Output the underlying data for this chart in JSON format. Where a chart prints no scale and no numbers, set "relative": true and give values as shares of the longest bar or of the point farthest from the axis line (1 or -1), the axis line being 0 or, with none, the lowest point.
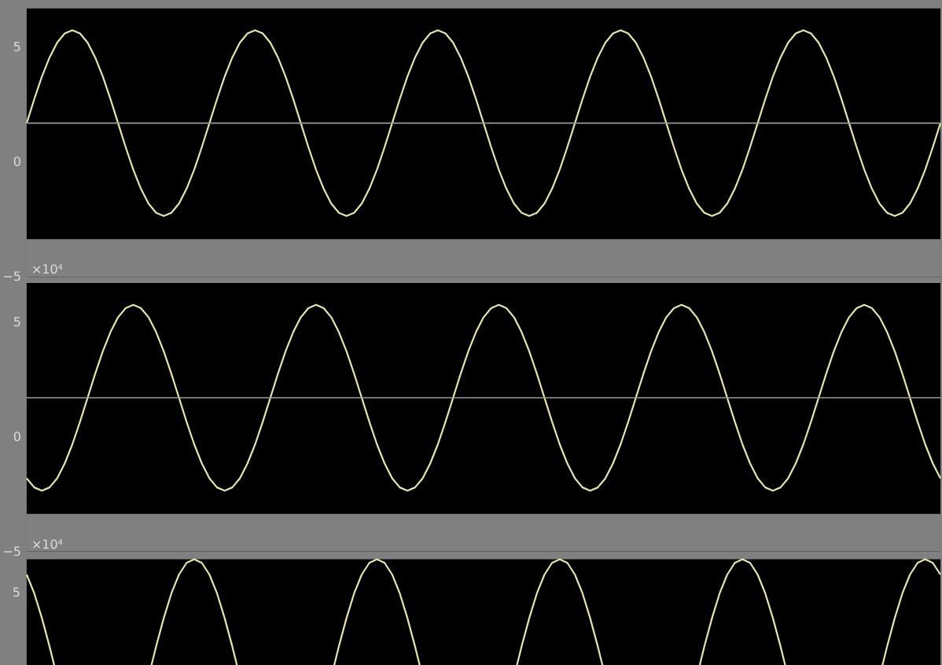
{
  "chart_data": [
    {
      "type": "line",
      "categories": [
        null,
        null,
        null,
        null,
        null,
        null,
        null,
        null,
        null,
        null,
        null,
        null,
        null,
        null,
        null,
        null,
        null,
        null,
        null,
        null,
        null,
        null,
        null,
        null,
        null,
        null,
        null,
        null,
        null,
        null,
        null,
        null,
        null,
        null,
        null,
        null,
        null,
        null,
        null,
        null,
        null,
        null,
        null,
        null,
        null,
        null,
        null,
        null,
        null,
        null,
        null,
        null,
        null,
        null,
        null,
        null,
        null,
        null,
        null,
        null,
        null,
        null,
        null,
        null,
        null,
        null,
        null,
        null,
        null,
        null,
        null,
        null,
        null,
        null,
        null,
        null,
        null,
        null,
        null,
        null,
        null,
        null,
        null,
        null,
        null,
        null,
        null,
        null,
        null,
        null,
        null,
        null,
        null,
        null,
        null,
        null,
        null,
        null,
        null,
        null,
        null,
        null,
        null,
        null,
        null,
        null,
        null,
        null,
        null,
        null,
        null,
        null,
        null,
        null,
        null,
        null,
        null,
        null,
        null,
        null,
        null
      ],
      "series": [
        {
          "color": "#e6e6a8",
          "values": [
            1.7,
            2.75,
            3.73,
            4.56,
            5.21,
            5.61,
            5.75,
            5.61,
            5.21,
            4.56,
            3.73,
            2.75,
            1.7,
            0.65,
            -0.33,
            -1.16,
            -1.81,
            -2.21,
            -2.35,
            -2.21,
            -1.81,
            -1.16,
            -0.33,
            0.65,
            1.7,
            2.75,
            3.73,
            4.56,
            5.21,
            5.61,
            5.75,
            5.61,
            5.21,
            4.56,
            3.73,
            2.75,
            1.7,
            0.65,
            -0.33,
            -1.16,
            -1.81,
            -2.21,
            -2.35,
            -2.21,
            -1.81,
            -1.16,
            -0.33,
            0.65,
            1.7,
            2.75,
            3.73,
            4.56,
            5.21,
            5.61,
            5.75,
            5.61,
            5.21,
            4.56,
            3.73,
            2.75,
            1.7,
            0.65,
            -0.33,
            -1.16,
            -1.81,
            -2.21,
            -2.35,
            -2.21,
            -1.81,
            -1.16,
            -0.33,
            0.65,
            1.7,
            2.75,
            3.73,
            4.56,
            5.21,
            5.61,
            5.75,
            5.61,
            5.21,
            4.56,
            3.73,
            2.75,
            1.7,
            0.65,
            -0.33,
            -1.16,
            -1.81,
            -2.21,
            -2.35,
            -2.21,
            -1.81,
            -1.16,
            -0.33,
            0.65,
            1.7,
            2.75,
            3.73,
            4.56,
            5.21,
            5.61,
            5.75,
            5.61,
            5.21,
            4.56,
            3.73,
            2.75,
            1.7,
            0.65,
            -0.33,
            -1.16,
            -1.81,
            -2.21,
            -2.35,
            -2.21,
            -1.81,
            -1.16,
            -0.33,
            0.65,
            1.7
          ]
        }
      ],
      "ylim": [
        -5,
        6.7
      ],
      "yticks": [
        -5,
        0,
        5
      ],
      "tick_labels": "y",
      "marker": "none",
      "line_style": "solid",
      "ref_lines": [
        {
          "axis": "y",
          "value": 1.7,
          "color": "#9a9a9a"
        }
      ],
      "bands": [
        {
          "axis": "y",
          "from": -5,
          "to": -3.36,
          "color": "#808080"
        }
      ],
      "annotations": [
        "×10⁴"
      ]
    },
    {
      "type": "line",
      "categories": [
        null,
        null,
        null,
        null,
        null,
        null,
        null,
        null,
        null,
        null,
        null,
        null,
        null,
        null,
        null,
        null,
        null,
        null,
        null,
        null,
        null,
        null,
        null,
        null,
        null,
        null,
        null,
        null,
        null,
        null,
        null,
        null,
        null,
        null,
        null,
        null,
        null,
        null,
        null,
        null,
        null,
        null,
        null,
        null,
        null,
        null,
        null,
        null,
        null,
        null,
        null,
        null,
        null,
        null,
        null,
        null,
        null,
        null,
        null,
        null,
        null,
        null,
        null,
        null,
        null,
        null,
        null,
        null,
        null,
        null,
        null,
        null,
        null,
        null,
        null,
        null,
        null,
        null,
        null,
        null,
        null,
        null,
        null,
        null,
        null,
        null,
        null,
        null,
        null,
        null,
        null,
        null,
        null,
        null,
        null,
        null,
        null,
        null,
        null,
        null,
        null,
        null,
        null,
        null,
        null,
        null,
        null,
        null,
        null,
        null,
        null,
        null,
        null,
        null,
        null,
        null,
        null,
        null,
        null,
        null,
        null
      ],
      "series": [
        {
          "color": "#e6e6a8",
          "values": [
            -1.81,
            -2.21,
            -2.35,
            -2.21,
            -1.81,
            -1.16,
            -0.33,
            0.65,
            1.7,
            2.75,
            3.73,
            4.56,
            5.21,
            5.61,
            5.75,
            5.61,
            5.21,
            4.56,
            3.73,
            2.75,
            1.7,
            0.65,
            -0.33,
            -1.16,
            -1.81,
            -2.21,
            -2.35,
            -2.21,
            -1.81,
            -1.16,
            -0.33,
            0.65,
            1.7,
            2.75,
            3.73,
            4.56,
            5.21,
            5.61,
            5.75,
            5.61,
            5.21,
            4.56,
            3.73,
            2.75,
            1.7,
            0.65,
            -0.33,
            -1.16,
            -1.81,
            -2.21,
            -2.35,
            -2.21,
            -1.81,
            -1.16,
            -0.33,
            0.65,
            1.7,
            2.75,
            3.73,
            4.56,
            5.21,
            5.61,
            5.75,
            5.61,
            5.21,
            4.56,
            3.73,
            2.75,
            1.7,
            0.65,
            -0.33,
            -1.16,
            -1.81,
            -2.21,
            -2.35,
            -2.21,
            -1.81,
            -1.16,
            -0.33,
            0.65,
            1.7,
            2.75,
            3.73,
            4.56,
            5.21,
            5.61,
            5.75,
            5.61,
            5.21,
            4.56,
            3.73,
            2.75,
            1.7,
            0.65,
            -0.33,
            -1.16,
            -1.81,
            -2.21,
            -2.35,
            -2.21,
            -1.81,
            -1.16,
            -0.33,
            0.65,
            1.7,
            2.75,
            3.73,
            4.56,
            5.21,
            5.61,
            5.75,
            5.61,
            5.21,
            4.56,
            3.73,
            2.75,
            1.7,
            0.65,
            -0.33,
            -1.16,
            -1.81
          ]
        }
      ],
      "ylim": [
        -5,
        6.7
      ],
      "yticks": [
        -5,
        0,
        5
      ],
      "tick_labels": "y",
      "marker": "none",
      "line_style": "solid",
      "ref_lines": [
        {
          "axis": "y",
          "value": 1.7,
          "color": "#9a9a9a"
        }
      ],
      "bands": [
        {
          "axis": "y",
          "from": -5,
          "to": -3.36,
          "color": "#808080"
        }
      ],
      "annotations": [
        "×10⁴"
      ]
    },
    {
      "type": "line",
      "relative": true,
      "categories": [
        null,
        null,
        null,
        null,
        null,
        null,
        null,
        null,
        null,
        null,
        null,
        null,
        null,
        null,
        null,
        null,
        null,
        null,
        null,
        null,
        null,
        null,
        null,
        null,
        null,
        null,
        null,
        null,
        null,
        null,
        null,
        null,
        null,
        null,
        null,
        null,
        null,
        null,
        null,
        null,
        null,
        null,
        null,
        null,
        null,
        null,
        null,
        null,
        null,
        null,
        null,
        null,
        null,
        null,
        null,
        null,
        null,
        null,
        null,
        null,
        null,
        null,
        null,
        null,
        null,
        null,
        null,
        null,
        null,
        null,
        null,
        null,
        null,
        null,
        null,
        null,
        null,
        null,
        null,
        null,
        null,
        null,
        null,
        null,
        null,
        null,
        null,
        null,
        null,
        null,
        null,
        null,
        null,
        null,
        null,
        null,
        null,
        null,
        null,
        null,
        null,
        null,
        null,
        null,
        null,
        null,
        null,
        null,
        null,
        null,
        null,
        null,
        null,
        null,
        null,
        null,
        null,
        null,
        null,
        null,
        null
      ],
      "series": [
        {
          "color": "#e6e6a8",
          "values": [
            0.87,
            0.71,
            0.5,
            0.26,
            0,
            null,
            null,
            null,
            null,
            null,
            null,
            null,
            null,
            null,
            null,
            null,
            0,
            0.26,
            0.5,
            0.71,
            0.87,
            0.97,
            1,
            0.97,
            0.87,
            0.71,
            0.5,
            0.26,
            0,
            null,
            null,
            null,
            null,
            null,
            null,
            null,
            null,
            null,
            null,
            null,
            0,
            0.26,
            0.5,
            0.71,
            0.87,
            0.97,
            1,
            0.97,
            0.87,
            0.71,
            0.5,
            0.26,
            0,
            null,
            null,
            null,
            null,
            null,
            null,
            null,
            null,
            null,
            null,
            null,
            0,
            0.26,
            0.5,
            0.71,
            0.87,
            0.97,
            1,
            0.97,
            0.87,
            0.71,
            0.5,
            0.26,
            0,
            null,
            null,
            null,
            null,
            null,
            null,
            null,
            null,
            null,
            null,
            null,
            0,
            0.26,
            0.5,
            0.71,
            0.87,
            0.97,
            1,
            0.97,
            0.87,
            0.71,
            0.5,
            0.26,
            0,
            null,
            null,
            null,
            null,
            null,
            null,
            null,
            null,
            null,
            null,
            null,
            0,
            0.26,
            0.5,
            0.71,
            0.87,
            0.97,
            1,
            0.97,
            0.87
          ]
        }
      ],
      "tick_labels": false,
      "marker": "none",
      "line_style": "solid",
      "annotations": [
        "5"
      ]
    }
  ]
}
